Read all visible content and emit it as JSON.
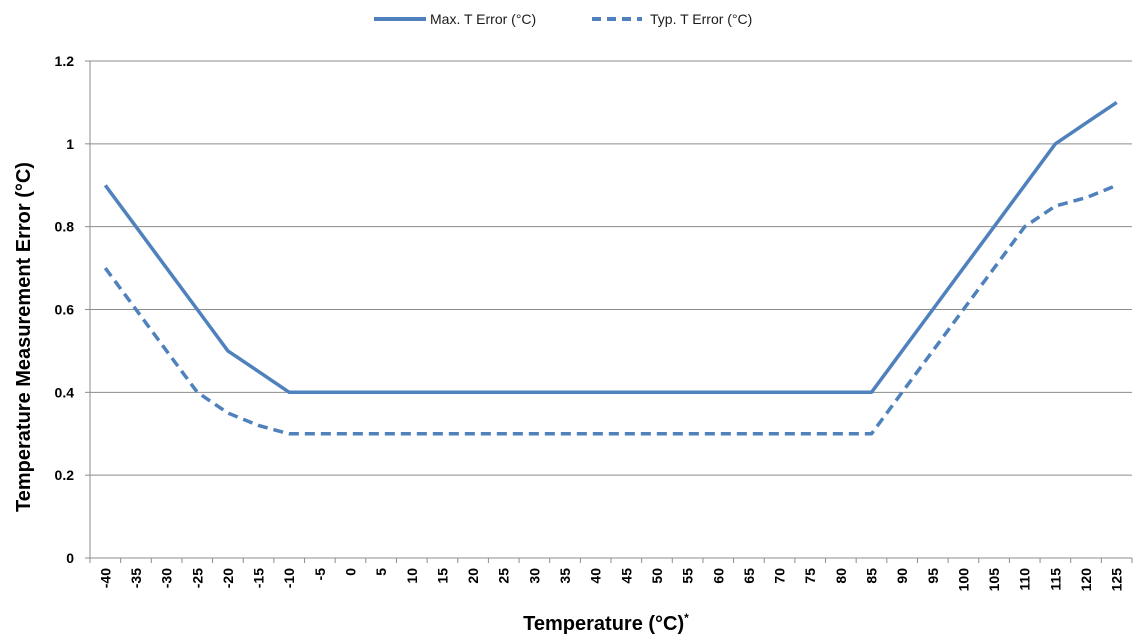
{
  "chart_data": {
    "type": "line",
    "title": "",
    "xlabel": "Temperature (°C)",
    "xlabel_suffix": "*",
    "ylabel": "Temperature Measurement Error (°C)",
    "ylim": [
      0,
      1.2
    ],
    "yticks": [
      "0",
      "0.2",
      "0.4",
      "0.6",
      "0.8",
      "1",
      "1.2"
    ],
    "ytick_values": [
      0,
      0.2,
      0.4,
      0.6,
      0.8,
      1.0,
      1.2
    ],
    "grid": true,
    "legend_position": "top-center",
    "categories": [
      "-40",
      "-35",
      "-30",
      "-25",
      "-20",
      "-15",
      "-10",
      "-5",
      "0",
      "5",
      "10",
      "15",
      "20",
      "25",
      "30",
      "35",
      "40",
      "45",
      "50",
      "55",
      "60",
      "65",
      "70",
      "75",
      "80",
      "85",
      "90",
      "95",
      "100",
      "105",
      "110",
      "115",
      "120",
      "125"
    ],
    "series": [
      {
        "name": "Max. T Error (°C)",
        "style": "solid",
        "color": "#4f81bd",
        "values": [
          0.9,
          0.8,
          0.7,
          0.6,
          0.5,
          0.45,
          0.4,
          0.4,
          0.4,
          0.4,
          0.4,
          0.4,
          0.4,
          0.4,
          0.4,
          0.4,
          0.4,
          0.4,
          0.4,
          0.4,
          0.4,
          0.4,
          0.4,
          0.4,
          0.4,
          0.4,
          0.5,
          0.6,
          0.7,
          0.8,
          0.9,
          1.0,
          1.05,
          1.1
        ]
      },
      {
        "name": "Typ. T Error (°C)",
        "style": "dashed",
        "color": "#4f81bd",
        "values": [
          0.7,
          0.6,
          0.5,
          0.4,
          0.35,
          0.32,
          0.3,
          0.3,
          0.3,
          0.3,
          0.3,
          0.3,
          0.3,
          0.3,
          0.3,
          0.3,
          0.3,
          0.3,
          0.3,
          0.3,
          0.3,
          0.3,
          0.3,
          0.3,
          0.3,
          0.3,
          0.4,
          0.5,
          0.6,
          0.7,
          0.8,
          0.85,
          0.87,
          0.9
        ]
      }
    ]
  }
}
